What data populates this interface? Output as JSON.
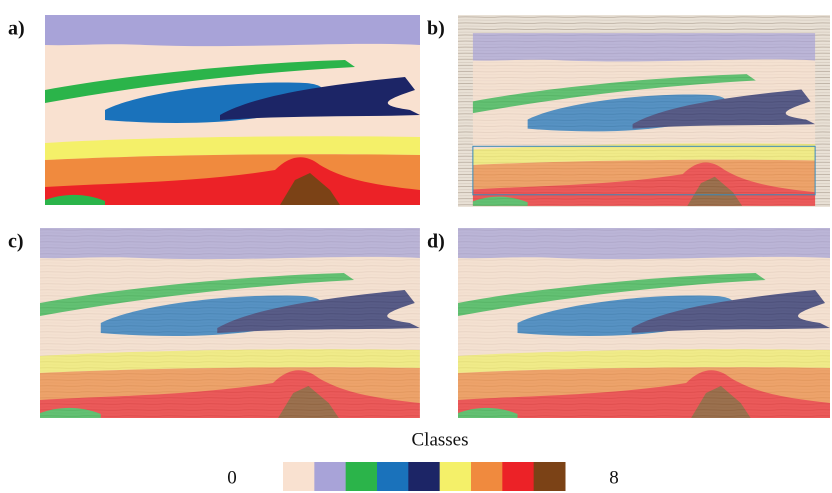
{
  "panels": [
    {
      "label": "a)"
    },
    {
      "label": "b)"
    },
    {
      "label": "c)"
    },
    {
      "label": "d)"
    }
  ],
  "colorbar": {
    "title": "Classes",
    "min_label": "0",
    "max_label": "8",
    "colors": [
      "#f9e1d0",
      "#a8a3d8",
      "#2bb44a",
      "#1a72bb",
      "#1c2566",
      "#f4f069",
      "#f08a3e",
      "#ec2227",
      "#7b4216"
    ]
  }
}
